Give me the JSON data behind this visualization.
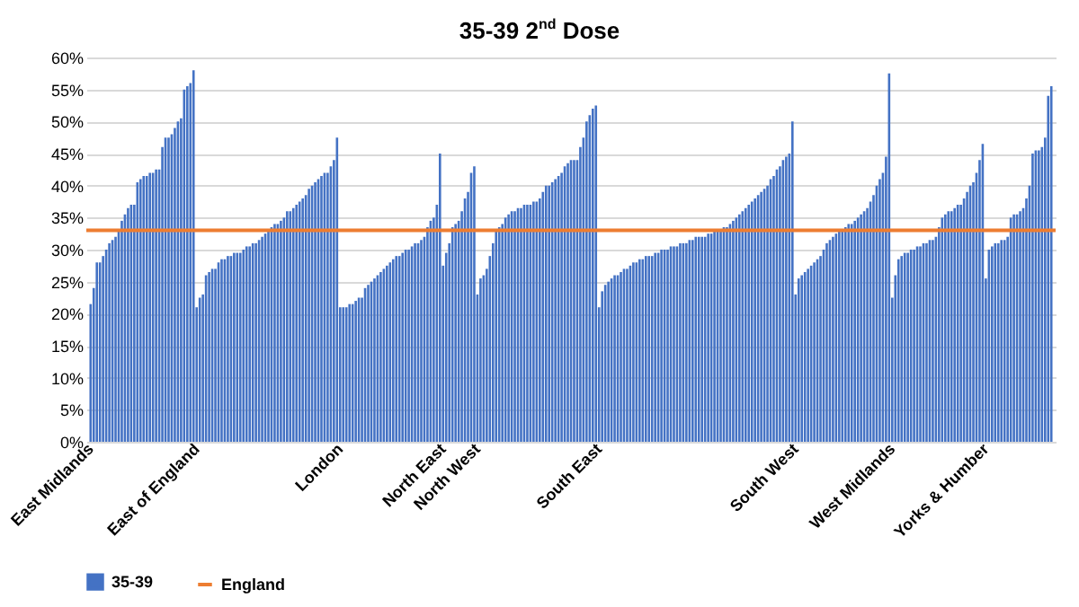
{
  "chart_data": {
    "type": "bar",
    "title": "35-39 2$^{nd}$ Dose",
    "categories": [
      "East Midlands",
      null,
      null,
      null,
      null,
      null,
      null,
      null,
      null,
      null,
      null,
      null,
      null,
      null,
      null,
      null,
      null,
      null,
      null,
      null,
      null,
      null,
      null,
      null,
      null,
      null,
      null,
      null,
      null,
      null,
      null,
      null,
      null,
      null,
      "East of England",
      null,
      null,
      null,
      null,
      null,
      null,
      null,
      null,
      null,
      null,
      null,
      null,
      null,
      null,
      null,
      null,
      null,
      null,
      null,
      null,
      null,
      null,
      null,
      null,
      null,
      null,
      null,
      null,
      null,
      null,
      null,
      null,
      null,
      null,
      null,
      null,
      null,
      null,
      null,
      null,
      null,
      null,
      null,
      null,
      null,
      "London",
      null,
      null,
      null,
      null,
      null,
      null,
      null,
      null,
      null,
      null,
      null,
      null,
      null,
      null,
      null,
      null,
      null,
      null,
      null,
      null,
      null,
      null,
      null,
      null,
      null,
      null,
      null,
      null,
      null,
      null,
      null,
      null,
      "North East",
      null,
      null,
      null,
      null,
      null,
      null,
      null,
      null,
      null,
      null,
      "North West",
      null,
      null,
      null,
      null,
      null,
      null,
      null,
      null,
      null,
      null,
      null,
      null,
      null,
      null,
      null,
      null,
      null,
      null,
      null,
      null,
      null,
      null,
      null,
      null,
      null,
      null,
      null,
      null,
      null,
      null,
      null,
      null,
      null,
      null,
      null,
      null,
      null,
      null,
      "South East",
      null,
      null,
      null,
      null,
      null,
      null,
      null,
      null,
      null,
      null,
      null,
      null,
      null,
      null,
      null,
      null,
      null,
      null,
      null,
      null,
      null,
      null,
      null,
      null,
      null,
      null,
      null,
      null,
      null,
      null,
      null,
      null,
      null,
      null,
      null,
      null,
      null,
      null,
      null,
      null,
      null,
      null,
      null,
      null,
      null,
      null,
      null,
      null,
      null,
      null,
      null,
      null,
      null,
      null,
      null,
      null,
      null,
      null,
      null,
      null,
      null,
      null,
      "South West",
      null,
      null,
      null,
      null,
      null,
      null,
      null,
      null,
      null,
      null,
      null,
      null,
      null,
      null,
      null,
      null,
      null,
      null,
      null,
      null,
      null,
      null,
      null,
      null,
      null,
      null,
      null,
      null,
      null,
      null,
      "West Midlands",
      null,
      null,
      null,
      null,
      null,
      null,
      null,
      null,
      null,
      null,
      null,
      null,
      null,
      null,
      null,
      null,
      null,
      null,
      null,
      null,
      null,
      null,
      null,
      null,
      null,
      null,
      null,
      null,
      null,
      "Yorks & Humber",
      null,
      null,
      null,
      null,
      null,
      null,
      null,
      null,
      null,
      null,
      null,
      null,
      null,
      null,
      null,
      null,
      null,
      null,
      null,
      null,
      null
    ],
    "series": [
      {
        "name": "35-39",
        "color": "#4472c4",
        "values": [
          21.5,
          24,
          28,
          28,
          29,
          30,
          31,
          31.5,
          32,
          33,
          34.5,
          35.5,
          36.5,
          37,
          37,
          40.5,
          41,
          41.5,
          41.5,
          42,
          42,
          42.5,
          42.5,
          46,
          47.5,
          47.5,
          48,
          49,
          50,
          50.5,
          55,
          55.5,
          56,
          58,
          21,
          22.5,
          23,
          26,
          26.5,
          27,
          27,
          28,
          28.5,
          28.5,
          29,
          29,
          29.5,
          29.5,
          29.5,
          30,
          30.5,
          30.5,
          31,
          31,
          31.5,
          32,
          32.5,
          33,
          33.5,
          34,
          34,
          34.5,
          35,
          36,
          36,
          36.5,
          37,
          37.5,
          38,
          38.5,
          39.5,
          40,
          40.5,
          41,
          41.5,
          42,
          42,
          43,
          44,
          47.5,
          21,
          21,
          21,
          21.5,
          21.5,
          22,
          22.5,
          22.5,
          24,
          24.5,
          25,
          25.5,
          26,
          26.5,
          27,
          27.5,
          28,
          28.5,
          29,
          29,
          29.5,
          30,
          30,
          30.5,
          31,
          31,
          31.5,
          32,
          33.5,
          34.5,
          35,
          37,
          45,
          27.5,
          29.5,
          31,
          33.5,
          34,
          34.5,
          36,
          38,
          39,
          42,
          43,
          23,
          25.5,
          26,
          27,
          29,
          31,
          33,
          33.5,
          34,
          35,
          35.5,
          36,
          36,
          36.5,
          36.5,
          37,
          37,
          37,
          37.5,
          37.5,
          38,
          39,
          40,
          40,
          40.5,
          41,
          41.5,
          42,
          43,
          43.5,
          44,
          44,
          44,
          46,
          47.5,
          50,
          51,
          52,
          52.5,
          21,
          23.5,
          24.5,
          25,
          25.5,
          26,
          26,
          26.5,
          27,
          27,
          27.5,
          28,
          28,
          28.5,
          28.5,
          29,
          29,
          29,
          29.5,
          29.5,
          30,
          30,
          30,
          30.5,
          30.5,
          30.5,
          31,
          31,
          31,
          31.5,
          31.5,
          32,
          32,
          32,
          32,
          32.5,
          32.5,
          33,
          33,
          33,
          33.5,
          33.5,
          34,
          34.5,
          35,
          35.5,
          36,
          36.5,
          37,
          37.5,
          38,
          38.5,
          39,
          39.5,
          40,
          41,
          41.5,
          42.5,
          43,
          44,
          44.5,
          45,
          50,
          23,
          25.5,
          26,
          26.5,
          27,
          27.5,
          28,
          28.5,
          29,
          30,
          31,
          31.5,
          32,
          32.5,
          33,
          33,
          33.5,
          34,
          34,
          34.5,
          35,
          35.5,
          36,
          36.5,
          37.5,
          38.5,
          40,
          41,
          42,
          44.5,
          57.5,
          22.5,
          26,
          28.5,
          29,
          29.5,
          29.5,
          30,
          30,
          30.5,
          30.5,
          31,
          31,
          31.5,
          31.5,
          32,
          33.5,
          35,
          35.5,
          36,
          36,
          36.5,
          37,
          37,
          38,
          39,
          40,
          40.5,
          42,
          44,
          46.5,
          25.5,
          30,
          30.5,
          31,
          31,
          31.5,
          31.5,
          32,
          35,
          35.5,
          35.5,
          36,
          36.5,
          38,
          40,
          45,
          45.5,
          45.5,
          46,
          47.5,
          54,
          55.5
        ]
      }
    ],
    "ylim": [
      0,
      60
    ],
    "yticks": [
      {
        "value": 0,
        "label": "0%"
      },
      {
        "value": 5,
        "label": "5%"
      },
      {
        "value": 10,
        "label": "10%"
      },
      {
        "value": 15,
        "label": "15%"
      },
      {
        "value": 20,
        "label": "20%"
      },
      {
        "value": 25,
        "label": "25%"
      },
      {
        "value": 30,
        "label": "30%"
      },
      {
        "value": 35,
        "label": "35%"
      },
      {
        "value": 40,
        "label": "40%"
      },
      {
        "value": 45,
        "label": "45%"
      },
      {
        "value": 50,
        "label": "50%"
      },
      {
        "value": 55,
        "label": "55%"
      },
      {
        "value": 60,
        "label": "60%"
      }
    ],
    "ref_lines": [
      {
        "axis": "y",
        "value": 33,
        "label": "England",
        "color": "#ed7d31"
      }
    ],
    "grid": "y",
    "legend": "bottom"
  }
}
